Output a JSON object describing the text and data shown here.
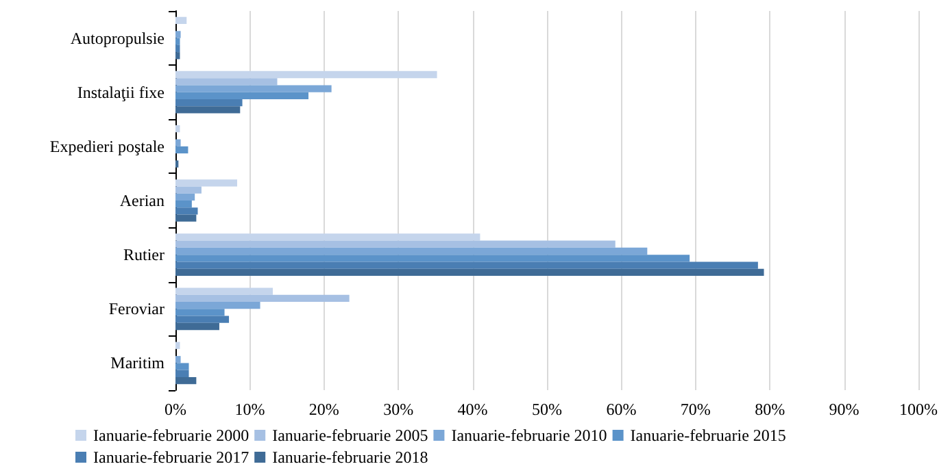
{
  "chart_data": {
    "type": "bar",
    "orientation": "horizontal",
    "categories": [
      "Autopropulsie",
      "Instalaţii fixe",
      "Expedieri poştale",
      "Aerian",
      "Rutier",
      "Feroviar",
      "Maritim"
    ],
    "series": [
      {
        "name": "Ianuarie-februarie 2000",
        "color": "#c5d5ec",
        "values": [
          1.5,
          35.2,
          0.6,
          8.3,
          41.0,
          13.1,
          0.6
        ]
      },
      {
        "name": "Ianuarie-februarie 2005",
        "color": "#a6c0e3",
        "values": [
          null,
          13.7,
          null,
          3.5,
          59.2,
          23.4,
          0
        ]
      },
      {
        "name": "Ianuarie-februarie 2010",
        "color": "#7ba7d7",
        "values": [
          0.7,
          21.0,
          0.7,
          2.6,
          63.5,
          11.4,
          0.7
        ]
      },
      {
        "name": "Ianuarie-februarie 2015",
        "color": "#5b93c9",
        "values": [
          0.6,
          17.9,
          1.7,
          2.2,
          69.2,
          6.6,
          1.8
        ]
      },
      {
        "name": "Ianuarie-februarie 2017",
        "color": "#4a7eb3",
        "values": [
          0.6,
          9.0,
          0,
          3.0,
          78.4,
          7.2,
          1.8
        ]
      },
      {
        "name": "Ianuarie-februarie 2018",
        "color": "#3f6b96",
        "values": [
          0.6,
          8.7,
          0.4,
          2.8,
          79.2,
          5.9,
          2.8
        ]
      }
    ],
    "xlim": [
      0,
      100
    ],
    "xticks": [
      {
        "value": 0,
        "label": "0%"
      },
      {
        "value": 10,
        "label": "10%"
      },
      {
        "value": 20,
        "label": "20%"
      },
      {
        "value": 30,
        "label": "30%"
      },
      {
        "value": 40,
        "label": "40%"
      },
      {
        "value": 50,
        "label": "50%"
      },
      {
        "value": 60,
        "label": "60%"
      },
      {
        "value": 70,
        "label": "70%"
      },
      {
        "value": 80,
        "label": "80%"
      },
      {
        "value": 90,
        "label": "90%"
      },
      {
        "value": 100,
        "label": "100%"
      }
    ],
    "grid": "x",
    "legend": "bottom"
  }
}
